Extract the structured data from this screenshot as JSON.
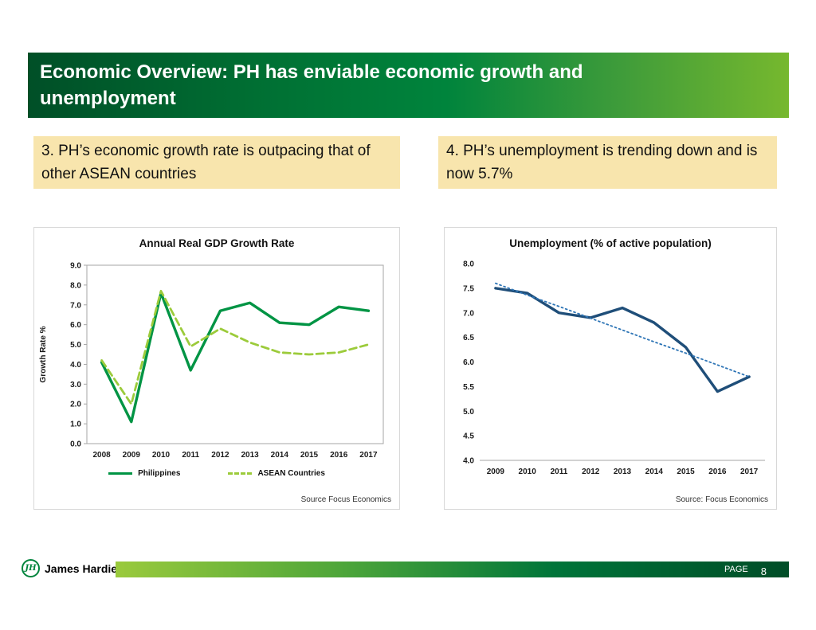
{
  "header": {
    "title": "Economic Overview: PH has enviable economic growth and unemployment",
    "title_lines": [
      "Economic Overview: PH has enviable economic growth and",
      "unemployment"
    ]
  },
  "callouts": [
    {
      "text": "3. PH’s economic growth rate is outpacing that of other ASEAN countries"
    },
    {
      "text": "4. PH’s unemployment is trending down and is now 5.7%"
    }
  ],
  "chart_data": [
    {
      "type": "line",
      "title": "Annual Real GDP Growth Rate",
      "xlabel": "",
      "ylabel": "Growth Rate %",
      "source": "Source  Focus Economics",
      "categories": [
        "2008",
        "2009",
        "2010",
        "2011",
        "2012",
        "2013",
        "2014",
        "2015",
        "2016",
        "2017"
      ],
      "ylim": [
        0.0,
        9.0
      ],
      "ytick_step": 1.0,
      "frame": "box",
      "grid": false,
      "legend_position": "bottom",
      "series": [
        {
          "name": "Philippines",
          "style": "solid",
          "color": "#009444",
          "values": [
            4.1,
            1.1,
            7.6,
            3.7,
            6.7,
            7.1,
            6.1,
            6.0,
            6.9,
            6.7
          ]
        },
        {
          "name": "ASEAN Countries",
          "style": "dashed",
          "color": "#9CCB3B",
          "values": [
            4.2,
            2.0,
            7.7,
            4.9,
            5.8,
            5.1,
            4.6,
            4.5,
            4.6,
            5.0
          ]
        }
      ]
    },
    {
      "type": "line",
      "title": "Unemployment (% of active population)",
      "xlabel": "",
      "ylabel": "",
      "source": "Source: Focus Economics",
      "categories": [
        "2009",
        "2010",
        "2011",
        "2012",
        "2013",
        "2014",
        "2015",
        "2016",
        "2017"
      ],
      "ylim": [
        4.0,
        8.0
      ],
      "ytick_step": 0.5,
      "frame": "bottom",
      "grid": false,
      "legend_position": "none",
      "series": [
        {
          "name": "Unemployment",
          "style": "solid",
          "color": "#1F4E79",
          "values": [
            7.5,
            7.4,
            7.0,
            6.9,
            7.1,
            6.8,
            6.3,
            5.4,
            5.7
          ]
        },
        {
          "name": "Linear trend",
          "style": "dotted",
          "color": "#2E75B6",
          "values": [
            7.6,
            7.36,
            7.13,
            6.89,
            6.65,
            6.41,
            6.18,
            5.94,
            5.7
          ]
        }
      ]
    }
  ],
  "footer": {
    "brand": "James Hardie",
    "logo_monogram": "JH",
    "page_label": "PAGE",
    "page_number": "8"
  },
  "colors": {
    "header_green_dark": "#004f27",
    "header_green": "#00843c",
    "header_green_light": "#76b82e",
    "footer_green_light": "#9aca3c",
    "callout_bg": "#f8e5ad",
    "philippines_line": "#009444",
    "asean_line": "#9CCB3B",
    "unemployment_line": "#1F4E79",
    "trend_line": "#2E75B6",
    "brand_green": "#00843c"
  }
}
